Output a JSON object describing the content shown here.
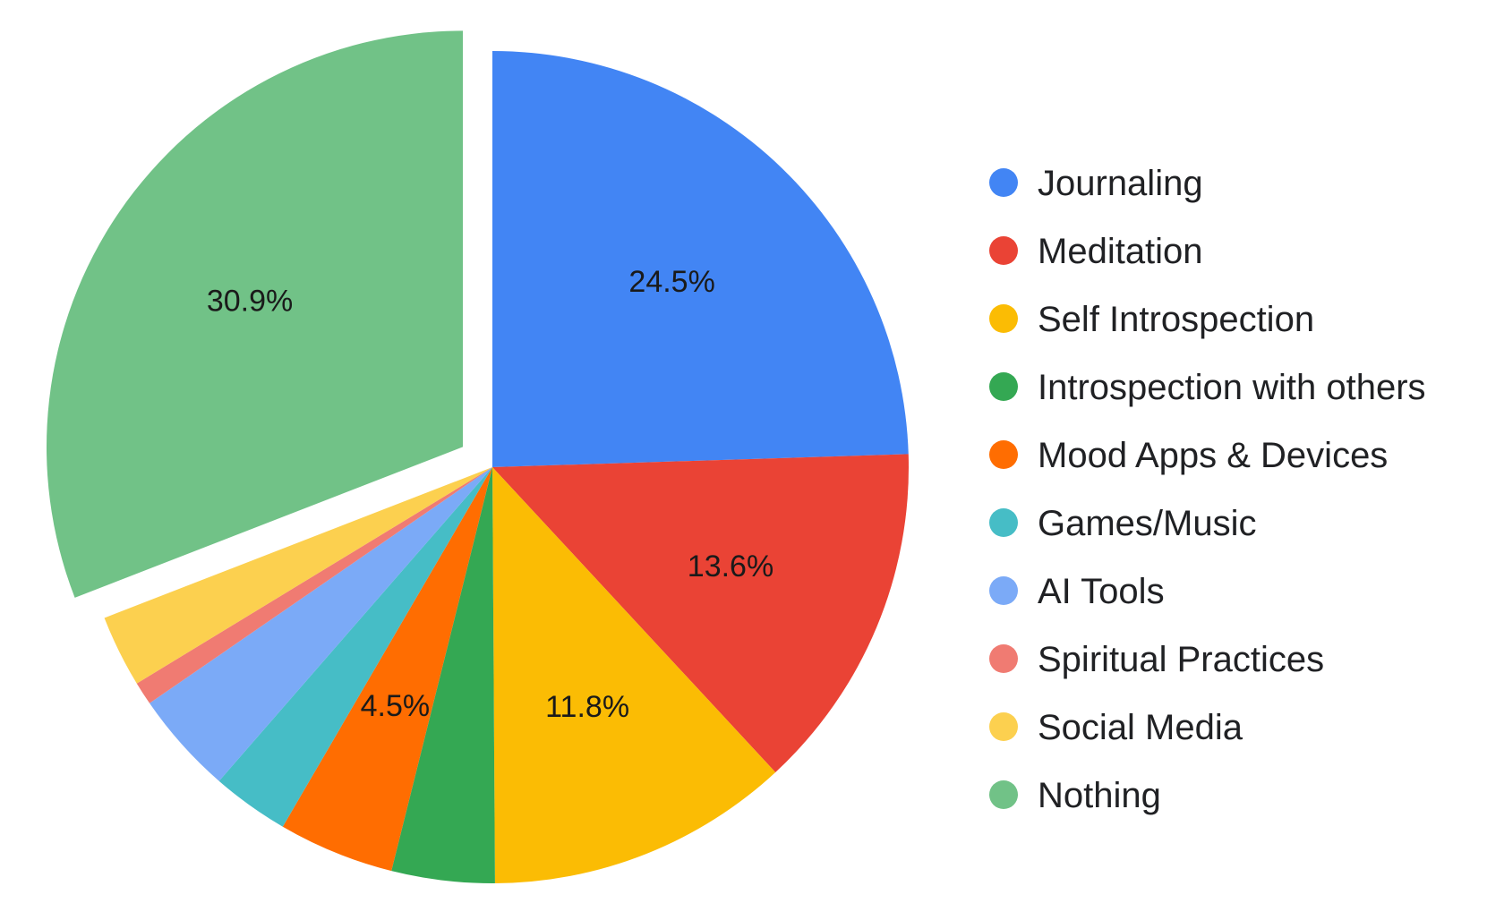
{
  "chart_data": {
    "type": "pie",
    "title": "",
    "legend_position": "right",
    "exploded_slice": "Nothing",
    "slices": [
      {
        "label": "Journaling",
        "value": 24.5,
        "display": "24.5%",
        "color": "#4285F4"
      },
      {
        "label": "Meditation",
        "value": 13.6,
        "display": "13.6%",
        "color": "#EA4335"
      },
      {
        "label": "Self Introspection",
        "value": 11.8,
        "display": "11.8%",
        "color": "#FBBC04"
      },
      {
        "label": "Introspection with others",
        "value": 4.0,
        "display": "",
        "color": "#34A853"
      },
      {
        "label": "Mood Apps & Devices",
        "value": 4.5,
        "display": "4.5%",
        "color": "#FF6D01"
      },
      {
        "label": "Games/Music",
        "value": 3.0,
        "display": "",
        "color": "#46BDC6"
      },
      {
        "label": "AI Tools",
        "value": 4.0,
        "display": "",
        "color": "#7BAAF7"
      },
      {
        "label": "Spiritual Practices",
        "value": 0.9,
        "display": "",
        "color": "#F07B72"
      },
      {
        "label": "Social Media",
        "value": 2.8,
        "display": "",
        "color": "#FCD04F"
      },
      {
        "label": "Nothing",
        "value": 30.9,
        "display": "30.9%",
        "color": "#71C287"
      }
    ]
  }
}
